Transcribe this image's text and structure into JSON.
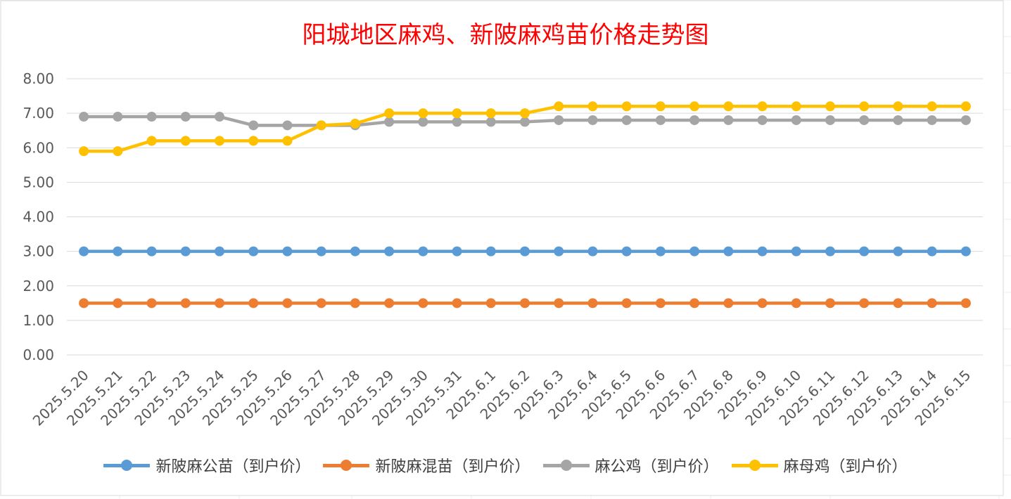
{
  "chart_data": {
    "type": "line",
    "title": "阳城地区麻鸡、新陂麻鸡苗价格走势图",
    "categories": [
      "2025.5.20",
      "2025.5.21",
      "2025.5.22",
      "2025.5.23",
      "2025.5.24",
      "2025.5.25",
      "2025.5.26",
      "2025.5.27",
      "2025.5.28",
      "2025.5.29",
      "2025.5.30",
      "2025.5.31",
      "2025.6.1",
      "2025.6.2",
      "2025.6.3",
      "2025.6.4",
      "2025.6.5",
      "2025.6.6",
      "2025.6.7",
      "2025.6.8",
      "2025.6.9",
      "2025.6.10",
      "2025.6.11",
      "2025.6.12",
      "2025.6.13",
      "2025.6.14",
      "2025.6.15"
    ],
    "ylim": [
      0,
      8
    ],
    "yticks": [
      "0.00",
      "1.00",
      "2.00",
      "3.00",
      "4.00",
      "5.00",
      "6.00",
      "7.00",
      "8.00"
    ],
    "grid": true,
    "legend_position": "bottom",
    "series": [
      {
        "name": "新陂麻公苗（到户价）",
        "color": "#5b9bd5",
        "values": [
          3,
          3,
          3,
          3,
          3,
          3,
          3,
          3,
          3,
          3,
          3,
          3,
          3,
          3,
          3,
          3,
          3,
          3,
          3,
          3,
          3,
          3,
          3,
          3,
          3,
          3,
          3
        ]
      },
      {
        "name": "新陂麻混苗（到户价）",
        "color": "#ed7d31",
        "values": [
          1.5,
          1.5,
          1.5,
          1.5,
          1.5,
          1.5,
          1.5,
          1.5,
          1.5,
          1.5,
          1.5,
          1.5,
          1.5,
          1.5,
          1.5,
          1.5,
          1.5,
          1.5,
          1.5,
          1.5,
          1.5,
          1.5,
          1.5,
          1.5,
          1.5,
          1.5,
          1.5
        ]
      },
      {
        "name": "麻公鸡（到户价）",
        "color": "#a5a5a5",
        "values": [
          6.9,
          6.9,
          6.9,
          6.9,
          6.9,
          6.65,
          6.65,
          6.65,
          6.65,
          6.75,
          6.75,
          6.75,
          6.75,
          6.75,
          6.8,
          6.8,
          6.8,
          6.8,
          6.8,
          6.8,
          6.8,
          6.8,
          6.8,
          6.8,
          6.8,
          6.8,
          6.8
        ]
      },
      {
        "name": "麻母鸡（到户价）",
        "color": "#ffc000",
        "values": [
          5.9,
          5.9,
          6.2,
          6.2,
          6.2,
          6.2,
          6.2,
          6.65,
          6.7,
          7,
          7,
          7,
          7,
          7,
          7.2,
          7.2,
          7.2,
          7.2,
          7.2,
          7.2,
          7.2,
          7.2,
          7.2,
          7.2,
          7.2,
          7.2,
          7.2
        ]
      }
    ]
  }
}
